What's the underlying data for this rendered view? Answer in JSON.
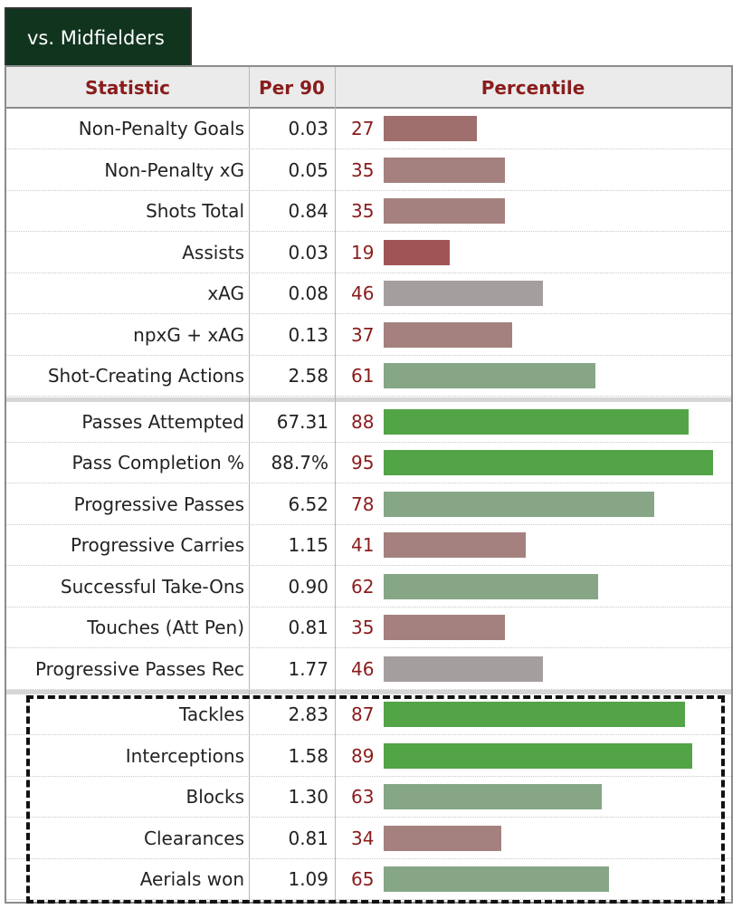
{
  "tab": {
    "label": "vs. Midfielders"
  },
  "headers": {
    "statistic": "Statistic",
    "per90": "Per 90",
    "percentile": "Percentile"
  },
  "colors": {
    "tab_bg": "#11341f",
    "header_text": "#8a1c1c",
    "high": "#52a447",
    "mid_high": "#86a686",
    "mid": "#a59e9e",
    "low_mid": "#a4817e",
    "low": "#9f6f6d",
    "very_low": "#a05555"
  },
  "chart_data": {
    "type": "bar",
    "orientation": "horizontal",
    "xlim": [
      0,
      100
    ],
    "groups": [
      {
        "rows": [
          {
            "stat": "Non-Penalty Goals",
            "per90": "0.03",
            "percentile": 27
          },
          {
            "stat": "Non-Penalty xG",
            "per90": "0.05",
            "percentile": 35
          },
          {
            "stat": "Shots Total",
            "per90": "0.84",
            "percentile": 35
          },
          {
            "stat": "Assists",
            "per90": "0.03",
            "percentile": 19
          },
          {
            "stat": "xAG",
            "per90": "0.08",
            "percentile": 46
          },
          {
            "stat": "npxG + xAG",
            "per90": "0.13",
            "percentile": 37
          },
          {
            "stat": "Shot-Creating Actions",
            "per90": "2.58",
            "percentile": 61
          }
        ]
      },
      {
        "rows": [
          {
            "stat": "Passes Attempted",
            "per90": "67.31",
            "percentile": 88
          },
          {
            "stat": "Pass Completion %",
            "per90": "88.7%",
            "percentile": 95
          },
          {
            "stat": "Progressive Passes",
            "per90": "6.52",
            "percentile": 78
          },
          {
            "stat": "Progressive Carries",
            "per90": "1.15",
            "percentile": 41
          },
          {
            "stat": "Successful Take-Ons",
            "per90": "0.90",
            "percentile": 62
          },
          {
            "stat": "Touches (Att Pen)",
            "per90": "0.81",
            "percentile": 35
          },
          {
            "stat": "Progressive Passes Rec",
            "per90": "1.77",
            "percentile": 46
          }
        ]
      },
      {
        "highlighted": true,
        "rows": [
          {
            "stat": "Tackles",
            "per90": "2.83",
            "percentile": 87
          },
          {
            "stat": "Interceptions",
            "per90": "1.58",
            "percentile": 89
          },
          {
            "stat": "Blocks",
            "per90": "1.30",
            "percentile": 63
          },
          {
            "stat": "Clearances",
            "per90": "0.81",
            "percentile": 34
          },
          {
            "stat": "Aerials won",
            "per90": "1.09",
            "percentile": 65
          }
        ]
      }
    ]
  }
}
